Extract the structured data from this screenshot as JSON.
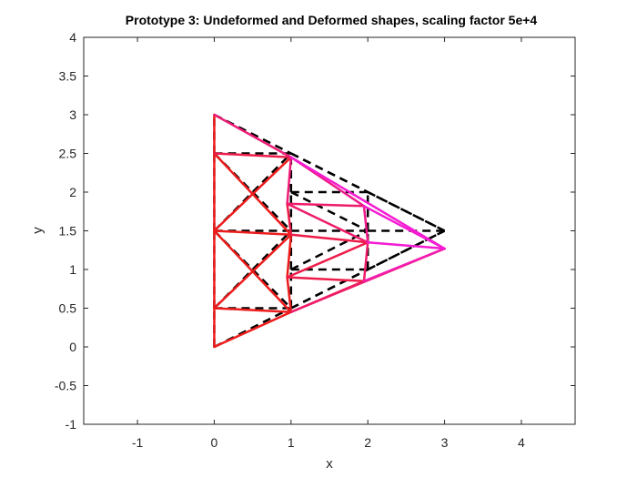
{
  "chart_data": {
    "type": "line",
    "title": "Prototype 3: Undeformed and Deformed shapes, scaling factor 5e+4",
    "xlabel": "x",
    "ylabel": "y",
    "xlim": [
      -1.7,
      4.7
    ],
    "ylim": [
      -1,
      4
    ],
    "xticks": [
      -1,
      0,
      1,
      2,
      3,
      4
    ],
    "yticks": [
      -1,
      -0.5,
      0,
      0.5,
      1,
      1.5,
      2,
      2.5,
      3,
      3.5,
      4
    ],
    "xtick_labels": [
      "-1",
      "0",
      "1",
      "2",
      "3",
      "4"
    ],
    "ytick_labels": [
      "-1",
      "-0.5",
      "0",
      "0.5",
      "1",
      "1.5",
      "2",
      "2.5",
      "3",
      "3.5",
      "4"
    ],
    "grid": false,
    "legend": "none",
    "series": [
      {
        "style": "dashed",
        "color": "#000000",
        "segments": [
          [
            [
              0,
              0
            ],
            [
              0,
              0.5
            ]
          ],
          [
            [
              0,
              0.5
            ],
            [
              0,
              1.5
            ]
          ],
          [
            [
              0,
              1.5
            ],
            [
              0,
              2.5
            ]
          ],
          [
            [
              0,
              2.5
            ],
            [
              0,
              3
            ]
          ],
          [
            [
              0,
              0
            ],
            [
              1,
              0.5
            ]
          ],
          [
            [
              0,
              0.5
            ],
            [
              1,
              0.5
            ]
          ],
          [
            [
              0,
              0.5
            ],
            [
              1,
              1.5
            ]
          ],
          [
            [
              0,
              1.5
            ],
            [
              1,
              0.5
            ]
          ],
          [
            [
              0,
              1.5
            ],
            [
              1,
              1.5
            ]
          ],
          [
            [
              0,
              1.5
            ],
            [
              1,
              2.5
            ]
          ],
          [
            [
              0,
              2.5
            ],
            [
              1,
              1.5
            ]
          ],
          [
            [
              0,
              2.5
            ],
            [
              1,
              2.5
            ]
          ],
          [
            [
              0,
              3
            ],
            [
              1,
              2.5
            ]
          ],
          [
            [
              1,
              0.5
            ],
            [
              1,
              1
            ]
          ],
          [
            [
              1,
              1
            ],
            [
              1,
              1.5
            ]
          ],
          [
            [
              1,
              1.5
            ],
            [
              1,
              2
            ]
          ],
          [
            [
              1,
              2
            ],
            [
              1,
              2.5
            ]
          ],
          [
            [
              1,
              0.5
            ],
            [
              2,
              1
            ]
          ],
          [
            [
              1,
              1
            ],
            [
              2,
              1
            ]
          ],
          [
            [
              1,
              1
            ],
            [
              2,
              1.5
            ]
          ],
          [
            [
              1,
              1.5
            ],
            [
              2,
              1.5
            ]
          ],
          [
            [
              1,
              2
            ],
            [
              2,
              1.5
            ]
          ],
          [
            [
              1,
              2
            ],
            [
              2,
              2
            ]
          ],
          [
            [
              1,
              2.5
            ],
            [
              2,
              2
            ]
          ],
          [
            [
              1,
              0.5
            ],
            [
              3,
              1.5
            ]
          ],
          [
            [
              1,
              2.5
            ],
            [
              3,
              1.5
            ]
          ],
          [
            [
              2,
              1
            ],
            [
              2,
              1.5
            ]
          ],
          [
            [
              2,
              1.5
            ],
            [
              2,
              2
            ]
          ],
          [
            [
              2,
              1
            ],
            [
              3,
              1.5
            ]
          ],
          [
            [
              2,
              1.5
            ],
            [
              3,
              1.5
            ]
          ],
          [
            [
              2,
              2
            ],
            [
              3,
              1.5
            ]
          ]
        ]
      },
      {
        "style": "solid",
        "segments": [
          {
            "p": [
              [
                0,
                0
              ],
              [
                0,
                0.5
              ]
            ],
            "color": "#ee1c1c"
          },
          {
            "p": [
              [
                0,
                0.5
              ],
              [
                0,
                1.5
              ]
            ],
            "color": "#ee1c1c"
          },
          {
            "p": [
              [
                0,
                1.5
              ],
              [
                0,
                2.5
              ]
            ],
            "color": "#ee1c1c"
          },
          {
            "p": [
              [
                0,
                2.5
              ],
              [
                0,
                3
              ]
            ],
            "color": "#ee1c1c"
          },
          {
            "p": [
              [
                0,
                0.5
              ],
              [
                1,
                0.45
              ]
            ],
            "color": "#ee1c1c"
          },
          {
            "p": [
              [
                0,
                0
              ],
              [
                1,
                0.45
              ]
            ],
            "color": "#ee1c1c"
          },
          {
            "p": [
              [
                0,
                0.5
              ],
              [
                1,
                1.45
              ]
            ],
            "color": "#ee1c1c"
          },
          {
            "p": [
              [
                0,
                1.5
              ],
              [
                1,
                0.45
              ]
            ],
            "color": "#ee1c1c"
          },
          {
            "p": [
              [
                0,
                1.5
              ],
              [
                1,
                1.45
              ]
            ],
            "color": "#ee1c1c"
          },
          {
            "p": [
              [
                0,
                1.5
              ],
              [
                1,
                2.45
              ]
            ],
            "color": "#ee1c1c"
          },
          {
            "p": [
              [
                0,
                2.5
              ],
              [
                1,
                1.45
              ]
            ],
            "color": "#ee1c1c"
          },
          {
            "p": [
              [
                0,
                2.5
              ],
              [
                1,
                2.45
              ]
            ],
            "color": "#ee1c4a"
          },
          {
            "p": [
              [
                0,
                3
              ],
              [
                1,
                2.45
              ]
            ],
            "color": "#ee1c78"
          },
          {
            "p": [
              [
                1,
                0.45
              ],
              [
                0.95,
                0.9
              ]
            ],
            "color": "#ee1c1c"
          },
          {
            "p": [
              [
                0.95,
                0.9
              ],
              [
                1,
                1.45
              ]
            ],
            "color": "#ee1c1c"
          },
          {
            "p": [
              [
                1,
                1.45
              ],
              [
                0.95,
                1.85
              ]
            ],
            "color": "#ee1c4a"
          },
          {
            "p": [
              [
                0.95,
                1.85
              ],
              [
                1,
                2.45
              ]
            ],
            "color": "#ee1c78"
          },
          {
            "p": [
              [
                1,
                0.45
              ],
              [
                1.95,
                0.85
              ]
            ],
            "color": "#ee1c4a"
          },
          {
            "p": [
              [
                0.95,
                0.9
              ],
              [
                1.95,
                0.85
              ]
            ],
            "color": "#ee1c4a"
          },
          {
            "p": [
              [
                0.95,
                0.9
              ],
              [
                2,
                1.35
              ]
            ],
            "color": "#ee1c4a"
          },
          {
            "p": [
              [
                1,
                1.45
              ],
              [
                2,
                1.35
              ]
            ],
            "color": "#ee1c4a"
          },
          {
            "p": [
              [
                0.95,
                1.85
              ],
              [
                2,
                1.35
              ]
            ],
            "color": "#ee1c6a"
          },
          {
            "p": [
              [
                0.95,
                1.85
              ],
              [
                1.95,
                1.82
              ]
            ],
            "color": "#ee1c6a"
          },
          {
            "p": [
              [
                1,
                2.45
              ],
              [
                1.95,
                1.82
              ]
            ],
            "color": "#ee1c8a"
          },
          {
            "p": [
              [
                1,
                0.45
              ],
              [
                3,
                1.27
              ]
            ],
            "color": "#ee1c6a"
          },
          {
            "p": [
              [
                1,
                2.45
              ],
              [
                3,
                1.27
              ]
            ],
            "color": "#f41cd2"
          },
          {
            "p": [
              [
                1.95,
                0.85
              ],
              [
                2,
                1.35
              ]
            ],
            "color": "#ee1c6a"
          },
          {
            "p": [
              [
                2,
                1.35
              ],
              [
                1.95,
                1.82
              ]
            ],
            "color": "#ee1c8a"
          },
          {
            "p": [
              [
                1.95,
                0.85
              ],
              [
                3,
                1.27
              ]
            ],
            "color": "#f41cb0"
          },
          {
            "p": [
              [
                2,
                1.35
              ],
              [
                3,
                1.27
              ]
            ],
            "color": "#f41cd2"
          },
          {
            "p": [
              [
                1.95,
                1.82
              ],
              [
                3,
                1.27
              ]
            ],
            "color": "#f41cd2"
          }
        ]
      }
    ]
  }
}
